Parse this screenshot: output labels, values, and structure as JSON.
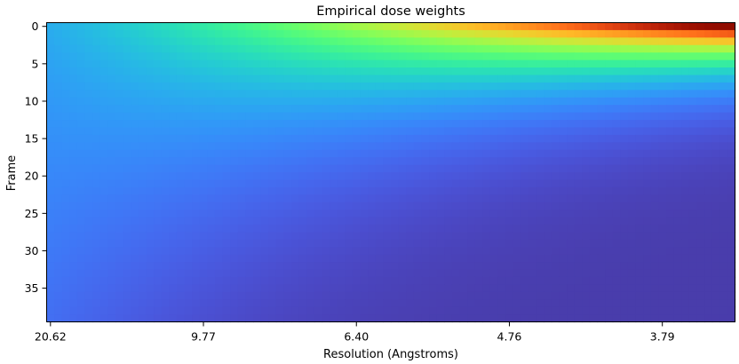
{
  "chart_data": {
    "type": "heatmap",
    "title": "Empirical dose weights",
    "xlabel": "Resolution (Angstroms)",
    "ylabel": "Frame",
    "n_rows": 40,
    "n_cols": 90,
    "colormap": "turbo",
    "value_range": [
      0,
      1
    ],
    "ylim": [
      39.5,
      -0.5
    ],
    "y_ticks": [
      0,
      5,
      10,
      15,
      20,
      25,
      30,
      35
    ],
    "x_ticks": [
      {
        "col": 0,
        "label": "20.62"
      },
      {
        "col": 20,
        "label": "9.77"
      },
      {
        "col": 40,
        "label": "6.40"
      },
      {
        "col": 60,
        "label": "4.76"
      },
      {
        "col": 80,
        "label": "3.79"
      }
    ],
    "description_values": {
      "frame0_low_res_weight": 0.2,
      "frame0_high_res_weight": 1.0,
      "late_frame_high_res_weight": 0.0
    }
  }
}
